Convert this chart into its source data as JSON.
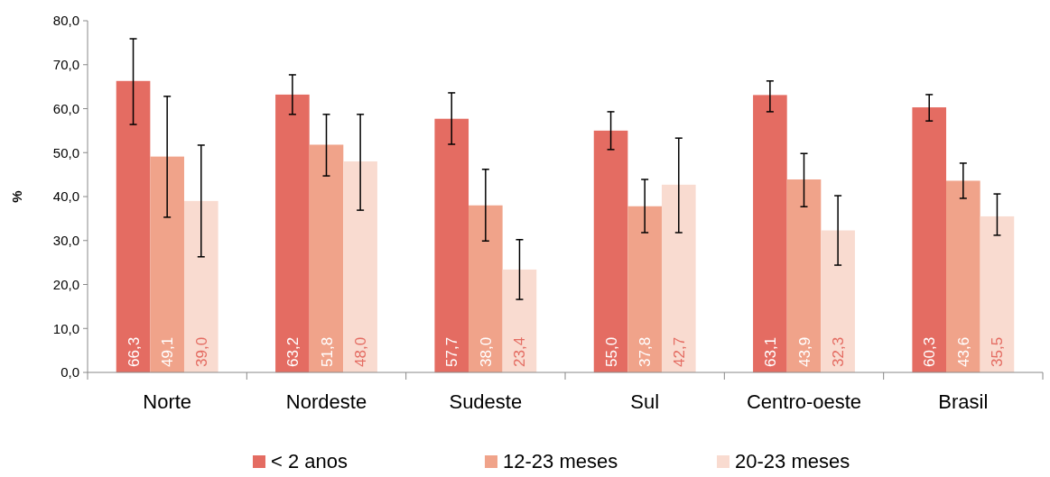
{
  "chart_data": {
    "type": "bar",
    "ylabel": "%",
    "categories": [
      "Norte",
      "Nordeste",
      "Sudeste",
      "Sul",
      "Centro-oeste",
      "Brasil"
    ],
    "series": [
      {
        "name": "< 2 anos",
        "color": "#e46c62",
        "values": [
          66.3,
          63.2,
          57.7,
          55.0,
          63.1,
          60.3
        ],
        "value_labels": [
          "66,3",
          "63,2",
          "57,7",
          "55,0",
          "63,1",
          "60,3"
        ],
        "errors": [
          [
            56.4,
            75.9
          ],
          [
            58.7,
            67.7
          ],
          [
            51.9,
            63.6
          ],
          [
            50.7,
            59.3
          ],
          [
            59.3,
            66.3
          ],
          [
            57.2,
            63.2
          ]
        ]
      },
      {
        "name": "12-23 meses",
        "color": "#f0a38a",
        "values": [
          49.1,
          51.8,
          38.0,
          37.8,
          43.9,
          43.6
        ],
        "value_labels": [
          "49,1",
          "51,8",
          "38,0",
          "37,8",
          "43,9",
          "43,6"
        ],
        "errors": [
          [
            35.3,
            62.8
          ],
          [
            44.7,
            58.7
          ],
          [
            29.9,
            46.2
          ],
          [
            31.8,
            43.9
          ],
          [
            37.7,
            49.8
          ],
          [
            39.6,
            47.6
          ]
        ]
      },
      {
        "name": "20-23 meses",
        "color": "#f9dbd0",
        "values": [
          39.0,
          48.0,
          23.4,
          42.7,
          32.3,
          35.5
        ],
        "value_labels": [
          "39,0",
          "48,0",
          "23,4",
          "42,7",
          "32,3",
          "35,5"
        ],
        "errors": [
          [
            26.3,
            51.7
          ],
          [
            36.9,
            58.7
          ],
          [
            16.6,
            30.2
          ],
          [
            31.8,
            53.3
          ],
          [
            24.4,
            40.2
          ],
          [
            31.2,
            40.6
          ]
        ]
      }
    ],
    "ylim": [
      0,
      80
    ],
    "yticks": [
      {
        "value": 0,
        "label": "0,0"
      },
      {
        "value": 10,
        "label": "10,0"
      },
      {
        "value": 20,
        "label": "20,0"
      },
      {
        "value": 30,
        "label": "30,0"
      },
      {
        "value": 40,
        "label": "40,0"
      },
      {
        "value": 50,
        "label": "50,0"
      },
      {
        "value": 60,
        "label": "60,0"
      },
      {
        "value": 70,
        "label": "70,0"
      },
      {
        "value": 80,
        "label": "80,0"
      }
    ],
    "legend": "bottom",
    "grid": false
  }
}
